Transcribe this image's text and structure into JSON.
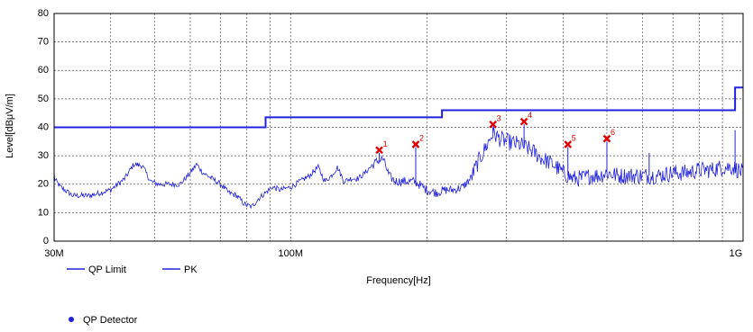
{
  "chart_data": {
    "type": "line",
    "xlabel": "Frequency[Hz]",
    "ylabel": "Level[dBμV/m]",
    "x_scale": "log",
    "xlim": [
      30,
      1000
    ],
    "ylim": [
      0,
      80
    ],
    "y_ticks": [
      0,
      10,
      20,
      30,
      40,
      50,
      60,
      70,
      80
    ],
    "x_tick_labels": [
      {
        "value": 30,
        "label": "30M"
      },
      {
        "value": 100,
        "label": "100M"
      },
      {
        "value": 1000,
        "label": "1G"
      }
    ],
    "x_minor_grid": [
      40,
      50,
      60,
      70,
      80,
      90,
      200,
      300,
      400,
      500,
      600,
      700,
      800,
      900
    ],
    "grid": true,
    "x_unit": "MHz",
    "colors": {
      "trace": "#2222dd",
      "marker": "#e00000",
      "grid": "#555555"
    },
    "series": [
      {
        "name": "QP Limit",
        "style": "step",
        "points": [
          [
            30,
            40
          ],
          [
            88,
            40
          ],
          [
            88,
            43.5
          ],
          [
            216,
            43.5
          ],
          [
            216,
            46
          ],
          [
            960,
            46
          ],
          [
            960,
            54
          ],
          [
            1000,
            54
          ]
        ]
      },
      {
        "name": "PK",
        "style": "trace",
        "points": [
          [
            30,
            22
          ],
          [
            31,
            19
          ],
          [
            33,
            16
          ],
          [
            36,
            16
          ],
          [
            40,
            18
          ],
          [
            43,
            22
          ],
          [
            45,
            27
          ],
          [
            47,
            26.5
          ],
          [
            49,
            21
          ],
          [
            51,
            20
          ],
          [
            54,
            20
          ],
          [
            57,
            20
          ],
          [
            60,
            24
          ],
          [
            62,
            27
          ],
          [
            64,
            24
          ],
          [
            67,
            22
          ],
          [
            70,
            20
          ],
          [
            73,
            17
          ],
          [
            76,
            16
          ],
          [
            79,
            13
          ],
          [
            82,
            12
          ],
          [
            85,
            15
          ],
          [
            88,
            17
          ],
          [
            91,
            19
          ],
          [
            95,
            18
          ],
          [
            100,
            19
          ],
          [
            105,
            21
          ],
          [
            110,
            23
          ],
          [
            115,
            26
          ],
          [
            119,
            21
          ],
          [
            123,
            23
          ],
          [
            127,
            26
          ],
          [
            131,
            21
          ],
          [
            136,
            22
          ],
          [
            141,
            22
          ],
          [
            146,
            24
          ],
          [
            150,
            26
          ],
          [
            155,
            28
          ],
          [
            160,
            29
          ],
          [
            165,
            23
          ],
          [
            170,
            21
          ],
          [
            178,
            21
          ],
          [
            187,
            21
          ],
          [
            192,
            20
          ],
          [
            200,
            18
          ],
          [
            210,
            17
          ],
          [
            220,
            18
          ],
          [
            230,
            18
          ],
          [
            240,
            19
          ],
          [
            250,
            22
          ],
          [
            260,
            28
          ],
          [
            270,
            33
          ],
          [
            280,
            38
          ],
          [
            290,
            36
          ],
          [
            300,
            35
          ],
          [
            320,
            34
          ],
          [
            340,
            32
          ],
          [
            360,
            29
          ],
          [
            380,
            27
          ],
          [
            400,
            24
          ],
          [
            420,
            22
          ],
          [
            440,
            22
          ],
          [
            460,
            23
          ],
          [
            480,
            23
          ],
          [
            500,
            24
          ],
          [
            530,
            23
          ],
          [
            560,
            23
          ],
          [
            600,
            23
          ],
          [
            650,
            23
          ],
          [
            700,
            24
          ],
          [
            750,
            24
          ],
          [
            800,
            25
          ],
          [
            850,
            25
          ],
          [
            900,
            26
          ],
          [
            950,
            26
          ],
          [
            1000,
            24
          ]
        ]
      }
    ],
    "markers": [
      {
        "label": "1",
        "x": 157,
        "y": 32
      },
      {
        "label": "2",
        "x": 189,
        "y": 34
      },
      {
        "label": "3",
        "x": 280,
        "y": 41
      },
      {
        "label": "4",
        "x": 328,
        "y": 42
      },
      {
        "label": "5",
        "x": 410,
        "y": 34
      },
      {
        "label": "6",
        "x": 500,
        "y": 36
      }
    ],
    "legend": {
      "placement": "bottom-left",
      "entries": [
        "QP Limit",
        "PK"
      ],
      "detector_entry": "QP Detector"
    }
  }
}
